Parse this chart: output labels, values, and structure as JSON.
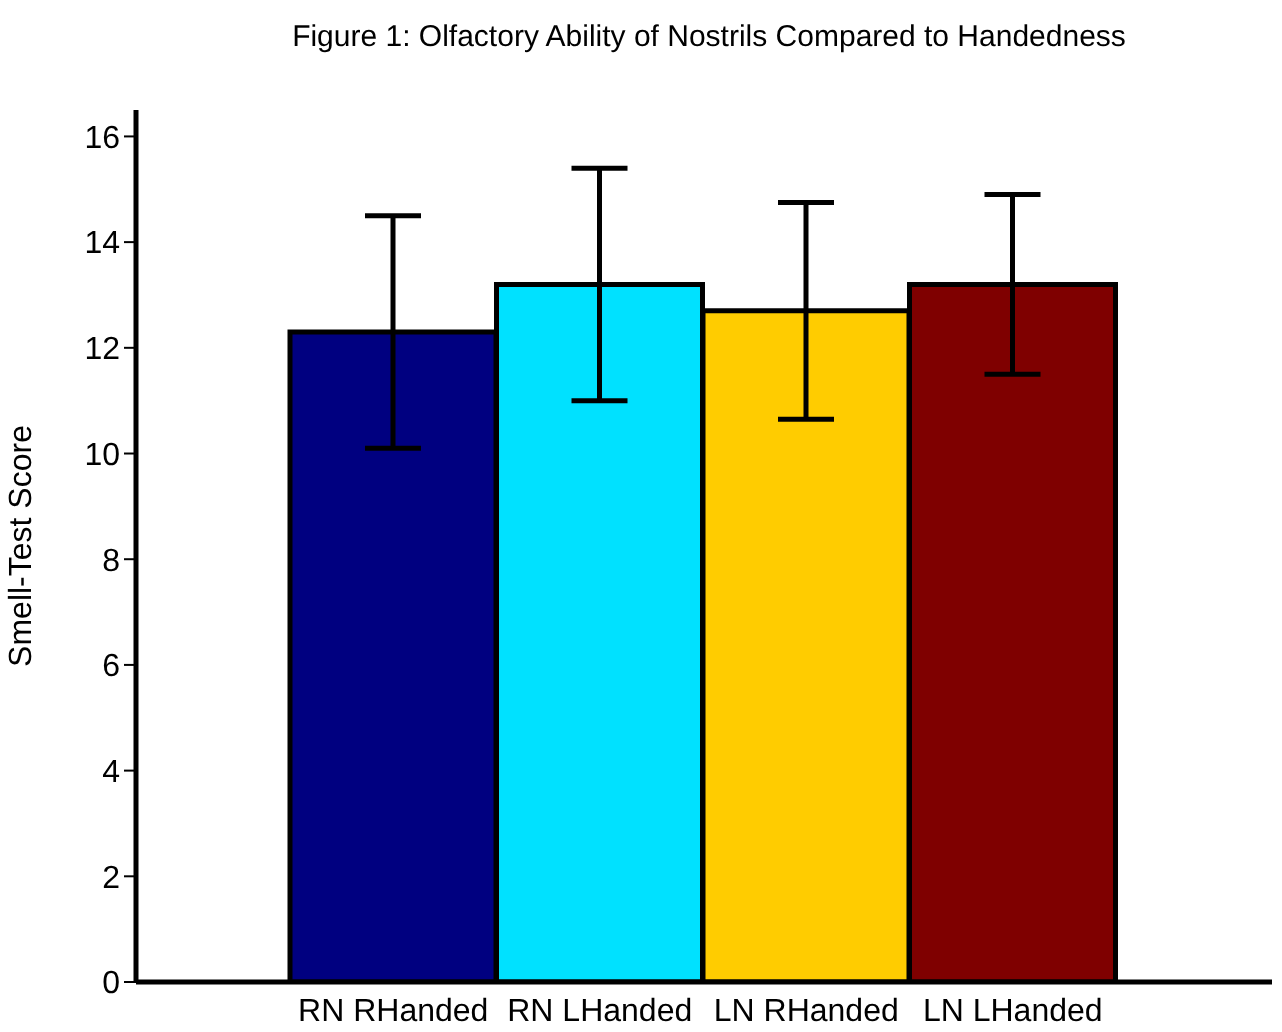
{
  "chart_data": {
    "type": "bar",
    "title": "Figure 1: Olfactory Ability of Nostrils Compared to Handedness",
    "ylabel": "Smell-Test Score",
    "categories": [
      "RN RHanded",
      "RN LHanded",
      "LN RHanded",
      "LN LHanded"
    ],
    "values": [
      12.3,
      13.2,
      12.7,
      13.2
    ],
    "colors": [
      "#000080",
      "#00e1ff",
      "#ffcc00",
      "#7f0000"
    ],
    "errors": [
      2.2,
      2.2,
      2.05,
      1.7
    ],
    "ylim": [
      0,
      16.5
    ],
    "yticks": [
      0,
      2,
      4,
      6,
      8,
      10,
      12,
      14,
      16
    ],
    "grid": false,
    "legend": false
  }
}
